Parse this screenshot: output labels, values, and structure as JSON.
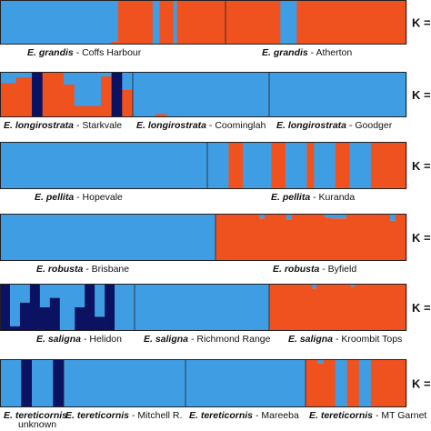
{
  "colors": {
    "blue": "#3f9de3",
    "orange": "#f0521f",
    "navy": "#0b1262",
    "outline": "#222222",
    "background": "#ffffff"
  },
  "chart_data": {
    "type": "bar",
    "style": "stacked 100% admixture bar plots (one thin bar per individual), six panels stacked vertically",
    "ylim": [
      0,
      1
    ],
    "clusters": [
      "blue",
      "orange",
      "navy"
    ],
    "panels": [
      {
        "k_label": "K =",
        "populations": [
          {
            "species": "E. grandis",
            "location": " - Coffs Harbour",
            "bars": [
              {
                "n": 32,
                "v": [
                  1,
                  0,
                  0
                ]
              },
              {
                "n": 2,
                "v": [
                  0.93,
                  0.07,
                  0
                ]
              },
              {
                "n": 10,
                "v": [
                  0,
                  1,
                  0
                ]
              },
              {
                "n": 2,
                "v": [
                  1,
                  0,
                  0
                ]
              },
              {
                "n": 4,
                "v": [
                  0,
                  1,
                  0
                ]
              },
              {
                "n": 1,
                "v": [
                  1,
                  0,
                  0
                ]
              },
              {
                "n": 14,
                "v": [
                  0,
                  1,
                  0
                ]
              }
            ]
          },
          {
            "species": "E. grandis",
            "location": " - Atherton",
            "bars": [
              {
                "n": 10,
                "v": [
                  0,
                  1,
                  0
                ]
              },
              {
                "n": 3,
                "v": [
                  1,
                  0,
                  0
                ]
              },
              {
                "n": 20,
                "v": [
                  0,
                  1,
                  0
                ]
              }
            ]
          }
        ]
      },
      {
        "k_label": "K =",
        "populations": [
          {
            "species": "E. longirostrata",
            "location": " - Starkvale",
            "bars": [
              {
                "n": 3,
                "v": [
                  0.25,
                  0.75,
                  0
                ]
              },
              {
                "n": 3,
                "v": [
                  0.12,
                  0.88,
                  0
                ]
              },
              {
                "n": 2,
                "v": [
                  0,
                  0,
                  1
                ]
              },
              {
                "n": 4,
                "v": [
                  0,
                  1,
                  0
                ]
              },
              {
                "n": 2,
                "v": [
                  0.28,
                  0.72,
                  0
                ]
              },
              {
                "n": 2,
                "v": [
                  0.75,
                  0.25,
                  0
                ]
              },
              {
                "n": 3,
                "v": [
                  0.75,
                  0.25,
                  0
                ]
              },
              {
                "n": 2,
                "v": [
                  0.1,
                  0.9,
                  0
                ]
              },
              {
                "n": 2,
                "v": [
                  0,
                  0,
                  1
                ]
              },
              {
                "n": 2,
                "v": [
                  0.4,
                  0.6,
                  0
                ]
              }
            ]
          },
          {
            "species": "E. longirostrata",
            "location": " - Coominglah",
            "bars": [
              {
                "n": 4,
                "v": [
                  1,
                  0,
                  0
                ]
              },
              {
                "n": 2,
                "v": [
                  0.93,
                  0.07,
                  0
                ]
              },
              {
                "n": 18,
                "v": [
                  1,
                  0,
                  0
                ]
              }
            ]
          },
          {
            "species": "E. longirostrata",
            "location": " - Goodger",
            "bars": [
              {
                "n": 30,
                "v": [
                  1,
                  0,
                  0
                ]
              }
            ]
          }
        ]
      },
      {
        "k_label": "K =",
        "populations": [
          {
            "species": "E. pellita",
            "location": " - Hopevale",
            "bars": [
              {
                "n": 40,
                "v": [
                  1,
                  0,
                  0
                ]
              }
            ]
          },
          {
            "species": "E. pellita",
            "location": " - Kuranda",
            "bars": [
              {
                "n": 3,
                "v": [
                  1,
                  0,
                  0
                ]
              },
              {
                "n": 2,
                "v": [
                  0,
                  1,
                  0
                ]
              },
              {
                "n": 4,
                "v": [
                  1,
                  0,
                  0
                ]
              },
              {
                "n": 2,
                "v": [
                  0,
                  1,
                  0
                ]
              },
              {
                "n": 3,
                "v": [
                  1,
                  0,
                  0
                ]
              },
              {
                "n": 1,
                "v": [
                  0,
                  1,
                  0
                ]
              },
              {
                "n": 3,
                "v": [
                  1,
                  0,
                  0
                ]
              },
              {
                "n": 2,
                "v": [
                  0,
                  1,
                  0
                ]
              },
              {
                "n": 3,
                "v": [
                  1,
                  0,
                  0
                ]
              },
              {
                "n": 5,
                "v": [
                  0,
                  1,
                  0
                ]
              }
            ]
          }
        ]
      },
      {
        "k_label": "K =",
        "populations": [
          {
            "species": "E. robusta",
            "location": " - Brisbane",
            "bars": [
              {
                "n": 50,
                "v": [
                  1,
                  0,
                  0
                ]
              }
            ]
          },
          {
            "species": "E. robusta",
            "location": " - Byfield",
            "bars": [
              {
                "n": 8,
                "v": [
                  0,
                  1,
                  0
                ]
              },
              {
                "n": 1,
                "v": [
                  0.1,
                  0.9,
                  0
                ]
              },
              {
                "n": 4,
                "v": [
                  0,
                  1,
                  0
                ]
              },
              {
                "n": 1,
                "v": [
                  0.12,
                  0.88,
                  0
                ]
              },
              {
                "n": 6,
                "v": [
                  0,
                  1,
                  0
                ]
              },
              {
                "n": 1,
                "v": [
                  0.08,
                  0.92,
                  0
                ]
              },
              {
                "n": 3,
                "v": [
                  0.1,
                  0.9,
                  0
                ]
              },
              {
                "n": 8,
                "v": [
                  0,
                  1,
                  0
                ]
              },
              {
                "n": 1,
                "v": [
                  0.15,
                  0.85,
                  0
                ]
              },
              {
                "n": 2,
                "v": [
                  0,
                  1,
                  0
                ]
              }
            ]
          }
        ]
      },
      {
        "k_label": "K =",
        "populations": [
          {
            "species": "E. saligna",
            "location": " - Helidon",
            "bars": [
              {
                "n": 2,
                "v": [
                  0,
                  0,
                  1
                ]
              },
              {
                "n": 2,
                "v": [
                  0.9,
                  0,
                  0.1
                ]
              },
              {
                "n": 2,
                "v": [
                  0.4,
                  0,
                  0.6
                ]
              },
              {
                "n": 2,
                "v": [
                  0,
                  0,
                  1
                ]
              },
              {
                "n": 2,
                "v": [
                  0.5,
                  0,
                  0.5
                ]
              },
              {
                "n": 2,
                "v": [
                  0.3,
                  0,
                  0.7
                ]
              },
              {
                "n": 3,
                "v": [
                  1,
                  0,
                  0
                ]
              },
              {
                "n": 2,
                "v": [
                  0.5,
                  0,
                  0.5
                ]
              },
              {
                "n": 2,
                "v": [
                  0,
                  0,
                  1
                ]
              },
              {
                "n": 2,
                "v": [
                  0.7,
                  0,
                  0.3
                ]
              },
              {
                "n": 2,
                "v": [
                  0,
                  0,
                  1
                ]
              },
              {
                "n": 4,
                "v": [
                  1,
                  0,
                  0
                ]
              }
            ]
          },
          {
            "species": "E. saligna",
            "location": " - Richmond Range",
            "bars": [
              {
                "n": 26,
                "v": [
                  1,
                  0,
                  0
                ]
              }
            ]
          },
          {
            "species": "E. saligna",
            "location": " - Kroombit Tops",
            "bars": [
              {
                "n": 10,
                "v": [
                  0,
                  1,
                  0
                ]
              },
              {
                "n": 1,
                "v": [
                  0.1,
                  0.9,
                  0
                ]
              },
              {
                "n": 8,
                "v": [
                  0,
                  1,
                  0
                ]
              },
              {
                "n": 1,
                "v": [
                  0.06,
                  0.94,
                  0
                ]
              },
              {
                "n": 12,
                "v": [
                  0,
                  1,
                  0
                ]
              }
            ]
          }
        ]
      },
      {
        "k_label": "K =",
        "populations": [
          {
            "species": "E. tereticornis",
            "location": "\nunknown",
            "bars": [
              {
                "n": 4,
                "v": [
                  1,
                  0,
                  0
                ]
              },
              {
                "n": 2,
                "v": [
                  0,
                  0,
                  1
                ]
              },
              {
                "n": 4,
                "v": [
                  1,
                  0,
                  0
                ]
              },
              {
                "n": 2,
                "v": [
                  0,
                  0,
                  1
                ]
              }
            ]
          },
          {
            "species": "E. tereticornis",
            "location": " - Mitchell R.",
            "bars": [
              {
                "n": 30,
                "v": [
                  1,
                  0,
                  0
                ]
              }
            ]
          },
          {
            "species": "E. tereticornis",
            "location": " - Mareeba",
            "bars": [
              {
                "n": 30,
                "v": [
                  1,
                  0,
                  0
                ]
              }
            ]
          },
          {
            "species": "E. tereticornis",
            "location": " - MT Garnet",
            "bars": [
              {
                "n": 2,
                "v": [
                  0,
                  1,
                  0
                ]
              },
              {
                "n": 1,
                "v": [
                  0.08,
                  0.92,
                  0
                ]
              },
              {
                "n": 2,
                "v": [
                  0,
                  1,
                  0
                ]
              },
              {
                "n": 2,
                "v": [
                  1,
                  0,
                  0
                ]
              },
              {
                "n": 2,
                "v": [
                  0,
                  1,
                  0
                ]
              },
              {
                "n": 2,
                "v": [
                  1,
                  0,
                  0
                ]
              },
              {
                "n": 6,
                "v": [
                  0,
                  1,
                  0
                ]
              }
            ]
          }
        ]
      }
    ]
  }
}
